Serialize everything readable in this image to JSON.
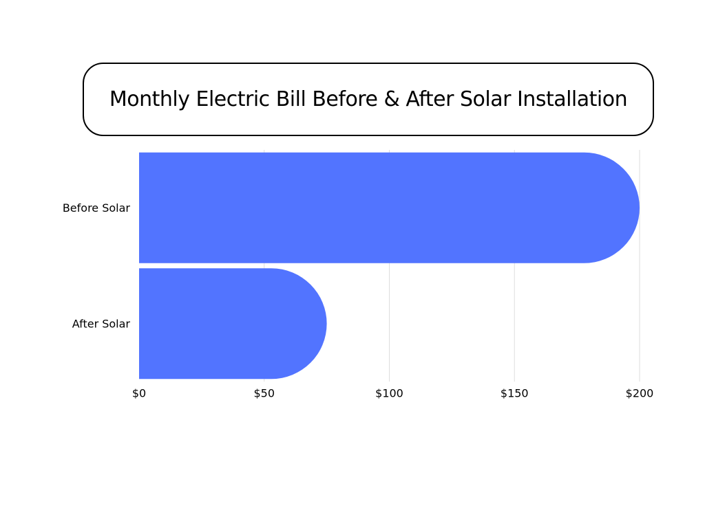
{
  "chart_data": {
    "type": "bar",
    "orientation": "horizontal",
    "title": "Monthly Electric Bill Before & After Solar Installation",
    "categories": [
      "Before Solar",
      "After Solar"
    ],
    "values": [
      200,
      75
    ],
    "xlabel": "",
    "ylabel": "",
    "xlim": [
      0,
      200
    ],
    "x_ticks": [
      "$0",
      "$50",
      "$100",
      "$150",
      "$200"
    ],
    "x_tick_values": [
      0,
      50,
      100,
      150,
      200
    ],
    "grid": true,
    "bar_color": "#5274FF",
    "grid_color": "#DDDDDD"
  }
}
